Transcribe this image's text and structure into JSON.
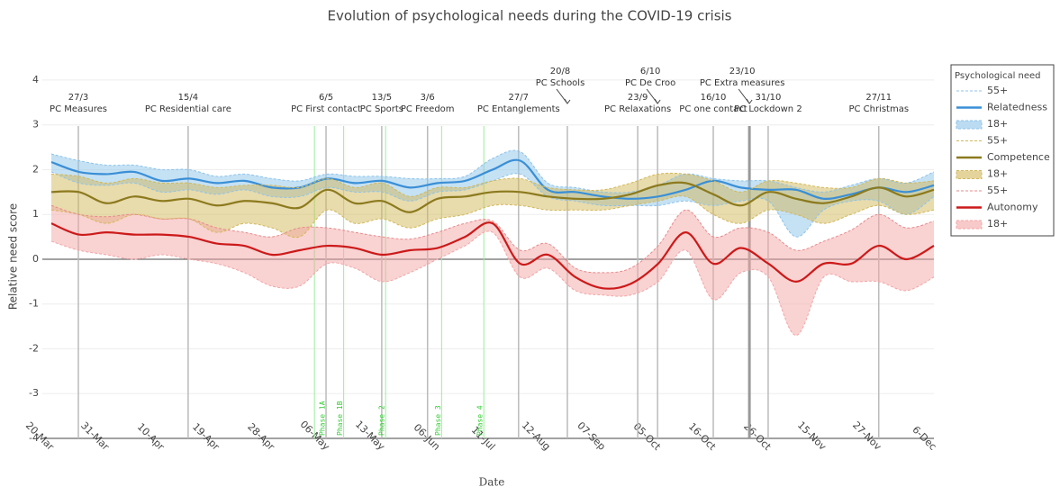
{
  "chart_data": {
    "type": "line",
    "title": "Evolution of psychological needs during the COVID-19 crisis",
    "x_label": "Date",
    "y_label": "Relative need score",
    "legend_title": "Psychological need",
    "legend_position": "right",
    "categories": [
      "20-Mar",
      null,
      "31-Mar",
      null,
      "10-Apr",
      null,
      "19-Apr",
      null,
      "28-Apr",
      null,
      "06-May",
      null,
      "13-May",
      null,
      "06-Jun",
      null,
      "11-Jul",
      null,
      "12-Aug",
      null,
      "07-Sep",
      null,
      "05-Oct",
      null,
      "16-Oct",
      null,
      "26-Oct",
      null,
      "15-Nov",
      null,
      "27-Nov",
      null,
      "6-Dec"
    ],
    "ylim": [
      -4,
      4.28
    ],
    "yticks": [
      -4,
      -3,
      -2,
      -1,
      0,
      1,
      2,
      3,
      4
    ],
    "grid": true,
    "series": [
      {
        "name": "55+",
        "color": "#8cc3ea",
        "dash": true,
        "values": [
          2.35,
          2.2,
          2.1,
          2.1,
          2.0,
          2.0,
          1.85,
          1.9,
          1.8,
          1.75,
          1.9,
          1.85,
          1.85,
          1.8,
          1.8,
          1.85,
          2.25,
          2.4,
          1.7,
          1.6,
          1.5,
          1.5,
          1.65,
          1.9,
          1.8,
          1.75,
          1.75,
          1.6,
          1.5,
          1.65,
          1.8,
          1.7,
          1.95
        ]
      },
      {
        "name": "Relatedness",
        "color": "#3a8fd6",
        "values": [
          2.17,
          1.95,
          1.9,
          1.95,
          1.75,
          1.8,
          1.7,
          1.75,
          1.6,
          1.6,
          1.8,
          1.7,
          1.75,
          1.6,
          1.7,
          1.75,
          2.0,
          2.2,
          1.55,
          1.5,
          1.4,
          1.35,
          1.4,
          1.55,
          1.75,
          1.6,
          1.55,
          1.55,
          1.35,
          1.45,
          1.6,
          1.5,
          1.65
        ]
      },
      {
        "name": "18+",
        "color": "#8cc3ea",
        "fill": true,
        "values": [
          1.95,
          1.7,
          1.65,
          1.7,
          1.5,
          1.55,
          1.45,
          1.55,
          1.4,
          1.4,
          1.6,
          1.5,
          1.5,
          1.3,
          1.5,
          1.55,
          1.75,
          1.9,
          1.4,
          1.3,
          1.2,
          1.2,
          1.2,
          1.3,
          1.2,
          1.3,
          1.3,
          0.5,
          1.1,
          1.3,
          1.3,
          1.0,
          1.4
        ]
      },
      {
        "name": "55+",
        "color": "#d2b85a",
        "dash": true,
        "values": [
          1.9,
          1.85,
          1.7,
          1.8,
          1.7,
          1.7,
          1.6,
          1.65,
          1.65,
          1.6,
          1.8,
          1.6,
          1.7,
          1.4,
          1.6,
          1.6,
          1.75,
          1.8,
          1.6,
          1.55,
          1.55,
          1.7,
          1.9,
          1.9,
          1.75,
          1.5,
          1.75,
          1.7,
          1.6,
          1.6,
          1.8,
          1.7,
          1.75
        ]
      },
      {
        "name": "Competence",
        "color": "#8c7a1e",
        "values": [
          1.5,
          1.5,
          1.25,
          1.4,
          1.3,
          1.35,
          1.2,
          1.3,
          1.25,
          1.15,
          1.55,
          1.25,
          1.3,
          1.05,
          1.35,
          1.4,
          1.5,
          1.5,
          1.4,
          1.35,
          1.35,
          1.45,
          1.65,
          1.7,
          1.45,
          1.2,
          1.5,
          1.35,
          1.25,
          1.4,
          1.6,
          1.4,
          1.55
        ]
      },
      {
        "name": "18+",
        "color": "#d2b85a",
        "fill": true,
        "values": [
          1.1,
          1.0,
          0.8,
          1.0,
          0.9,
          0.9,
          0.6,
          0.8,
          0.7,
          0.5,
          1.1,
          0.8,
          0.9,
          0.7,
          0.9,
          1.0,
          1.2,
          1.2,
          1.1,
          1.1,
          1.1,
          1.2,
          1.3,
          1.4,
          1.0,
          0.8,
          1.1,
          1.0,
          0.8,
          1.0,
          1.2,
          1.0,
          1.1
        ]
      },
      {
        "name": "55+",
        "color": "#e88a8a",
        "dash": true,
        "values": [
          1.2,
          1.0,
          0.95,
          1.0,
          0.9,
          0.9,
          0.7,
          0.6,
          0.5,
          0.7,
          0.7,
          0.6,
          0.5,
          0.45,
          0.6,
          0.8,
          0.85,
          0.2,
          0.35,
          -0.2,
          -0.3,
          -0.2,
          0.3,
          1.1,
          0.5,
          0.7,
          0.6,
          0.2,
          0.4,
          0.65,
          1.0,
          0.7,
          0.85
        ]
      },
      {
        "name": "Autonomy",
        "color": "#cc1a1a",
        "values": [
          0.8,
          0.55,
          0.6,
          0.55,
          0.55,
          0.5,
          0.35,
          0.3,
          0.1,
          0.2,
          0.3,
          0.25,
          0.1,
          0.2,
          0.25,
          0.5,
          0.8,
          -0.1,
          0.1,
          -0.4,
          -0.65,
          -0.55,
          -0.1,
          0.6,
          -0.1,
          0.25,
          -0.1,
          -0.5,
          -0.1,
          -0.1,
          0.3,
          0.0,
          0.3
        ]
      },
      {
        "name": "18+",
        "color": "#f4a5a5",
        "fill": true,
        "values": [
          0.4,
          0.2,
          0.1,
          0.0,
          0.1,
          0.0,
          -0.1,
          -0.3,
          -0.6,
          -0.6,
          -0.1,
          -0.2,
          -0.5,
          -0.3,
          0.0,
          0.3,
          0.6,
          -0.4,
          -0.2,
          -0.7,
          -0.8,
          -0.8,
          -0.5,
          0.2,
          -0.9,
          -0.3,
          -0.4,
          -1.7,
          -0.4,
          -0.5,
          -0.5,
          -0.7,
          -0.4
        ]
      }
    ],
    "events": [
      {
        "date": "27/3",
        "label": "PC Measures",
        "x": 0.98
      },
      {
        "date": "15/4",
        "label": "PC Residential care",
        "x": 4.96
      },
      {
        "date": "6/5",
        "label": "PC First contact",
        "x": 9.96
      },
      {
        "date": "13/5",
        "label": "PC Sports",
        "x": 11.98
      },
      {
        "date": "3/6",
        "label": "PC Freedom",
        "x": 13.64
      },
      {
        "date": "27/7",
        "label": "PC Entanglements",
        "x": 16.94
      },
      {
        "date": "20/8",
        "label": "PC Schools",
        "x": 18.71
      },
      {
        "date": "23/9",
        "label": "PC Relaxations",
        "x": 21.26
      },
      {
        "date": "6/10",
        "label": "PC De Croo",
        "x": 21.98
      },
      {
        "date": "16/10",
        "label": "PC one contact",
        "x": 24.0
      },
      {
        "date": "23/10",
        "label": "PC Extra measures",
        "x": 25.31
      },
      {
        "date": "31/10",
        "label": "PC Lockdown 2",
        "x": 25.99
      },
      {
        "date": "27/11",
        "label": "PC Christmas",
        "x": 30.0
      }
    ],
    "phases": [
      {
        "label": "Phase 1B",
        "x": 10.6
      },
      {
        "label": "Phase 1A",
        "x": 9.54
      },
      {
        "label": "Phase 2",
        "x": 12.12
      },
      {
        "label": "Phase 3",
        "x": 14.15
      },
      {
        "label": "Phase 4",
        "x": 15.68
      }
    ]
  }
}
